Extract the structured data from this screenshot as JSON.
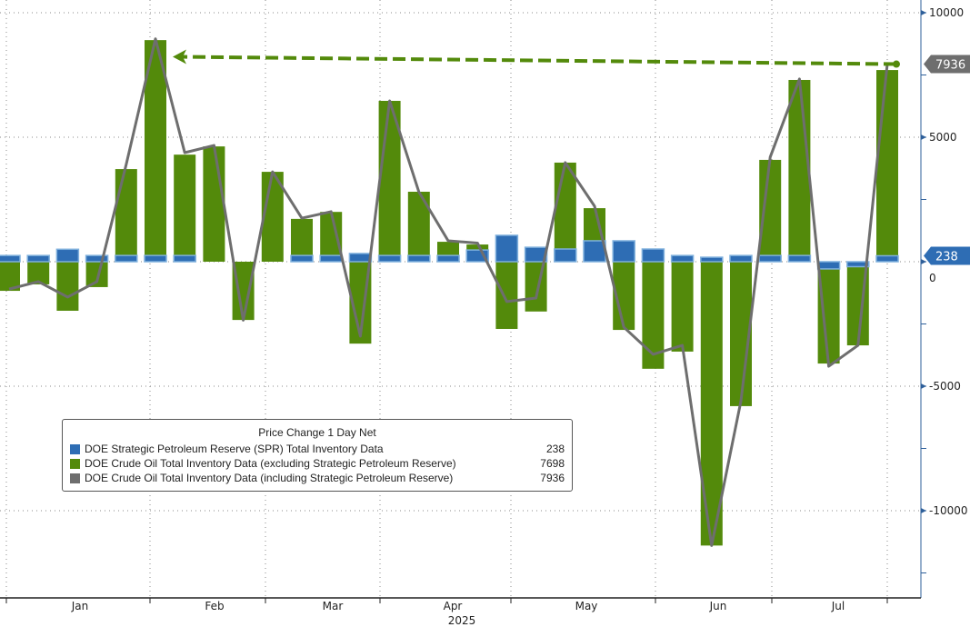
{
  "chart_data": {
    "type": "bar",
    "title": "Price Change 1 Day Net",
    "xlabel": "2025",
    "ylabel": "",
    "ylim": [
      -13500,
      10500
    ],
    "yticks": [
      10000,
      5000,
      0,
      -5000,
      -10000
    ],
    "month_labels": [
      "Jan",
      "Feb",
      "Mar",
      "Apr",
      "May",
      "Jun",
      "Jul"
    ],
    "year_label": "2025",
    "grid": true,
    "legend_placement": "bottom-left",
    "series": [
      {
        "name": "DOE Strategic Petroleum Reserve (SPR) Total Inventory Data",
        "type": "bar",
        "color": "#2e6db4",
        "last": "238",
        "values": [
          250,
          250,
          500,
          250,
          250,
          250,
          250,
          0,
          0,
          0,
          250,
          250,
          330,
          250,
          250,
          250,
          470,
          1060,
          580,
          510,
          840,
          840,
          510,
          250,
          180,
          250,
          250,
          250,
          -290,
          -200,
          238
        ]
      },
      {
        "name": "DOE Crude Oil Total Inventory Data (excluding Strategic Petroleum Reserve)",
        "type": "bar",
        "color": "#538a0b",
        "last": "7698",
        "values": [
          -1170,
          -910,
          -1970,
          -1020,
          3720,
          8900,
          4300,
          4630,
          -2340,
          3610,
          1720,
          2000,
          -3290,
          6460,
          2810,
          800,
          690,
          -2700,
          -2000,
          3980,
          2150,
          -2740,
          -4300,
          -3610,
          -11400,
          -5800,
          4090,
          7300,
          -4090,
          -3360,
          7698
        ]
      },
      {
        "name": "DOE Crude Oil Total Inventory Data (including Strategic Petroleum Reserve)",
        "type": "line",
        "color": "#6e6e6e",
        "last": "7936",
        "values": [
          -1100,
          -800,
          -1420,
          -800,
          3900,
          8950,
          4380,
          4670,
          -2350,
          3610,
          1750,
          2010,
          -2990,
          6460,
          2800,
          840,
          750,
          -1600,
          -1460,
          3980,
          2230,
          -2630,
          -3720,
          -3360,
          -11400,
          -5600,
          4200,
          7340,
          -4200,
          -3360,
          7936
        ]
      }
    ]
  }
}
